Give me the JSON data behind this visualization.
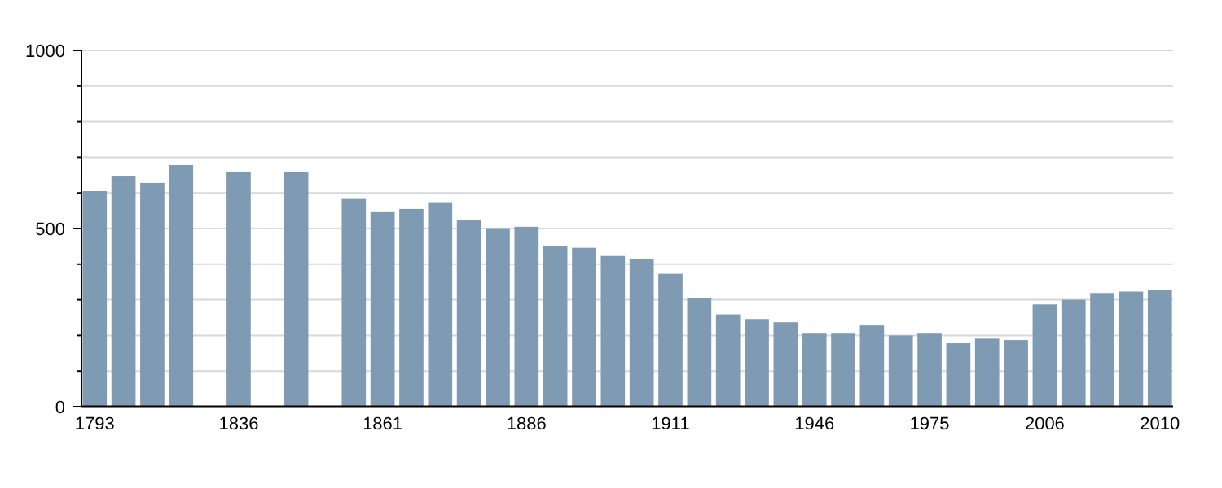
{
  "chart_data": {
    "type": "bar",
    "categories": [
      "1793",
      null,
      null,
      null,
      null,
      "1836",
      null,
      null,
      null,
      null,
      "1861",
      null,
      null,
      null,
      null,
      "1886",
      null,
      null,
      null,
      null,
      "1911",
      null,
      null,
      null,
      null,
      "1946",
      null,
      null,
      null,
      "1975",
      null,
      null,
      null,
      "2006",
      null,
      null,
      null,
      "2010"
    ],
    "values": [
      605,
      646,
      628,
      678,
      null,
      660,
      null,
      660,
      null,
      583,
      546,
      555,
      574,
      524,
      501,
      505,
      451,
      446,
      423,
      414,
      373,
      305,
      259,
      246,
      237,
      205,
      205,
      228,
      200,
      205,
      178,
      191,
      187,
      287,
      300,
      319,
      323,
      328
    ],
    "color": "#7f9ab3",
    "ylim": [
      0,
      1000
    ],
    "yticks": [
      0,
      {
        "value": 100,
        "label": null
      },
      {
        "value": 200,
        "label": null
      },
      {
        "value": 300,
        "label": null
      },
      {
        "value": 400,
        "label": null
      },
      500,
      {
        "value": 600,
        "label": null
      },
      {
        "value": 700,
        "label": null
      },
      {
        "value": 800,
        "label": null
      },
      {
        "value": 900,
        "label": null
      },
      1000
    ],
    "grid": true
  }
}
